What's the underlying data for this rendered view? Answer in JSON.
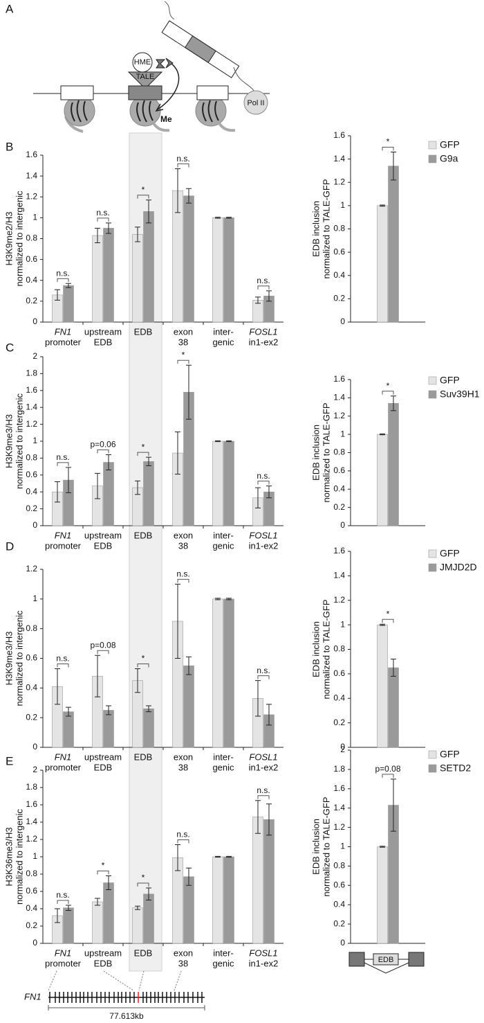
{
  "figure": {
    "panel_a": {
      "label": "A",
      "hme": "HME",
      "tale": "TALE",
      "me": "Me",
      "pol": "Pol II"
    },
    "gene_map": {
      "gene": "FN1",
      "length": "77.613kb"
    },
    "exon_diagram": {
      "label": "EDB"
    }
  },
  "chart_data": [
    {
      "type": "bar",
      "panel": "B",
      "ylabel": [
        "H3K9me2/H3",
        "normalized to intergenic"
      ],
      "categories": [
        [
          "FN1",
          "promoter"
        ],
        [
          "upstream",
          "EDB"
        ],
        [
          "EDB"
        ],
        [
          "exon",
          "38"
        ],
        [
          "inter-",
          "genic"
        ],
        [
          "FOSL1",
          "in1-ex2"
        ]
      ],
      "ylim": [
        0,
        1.6
      ],
      "yticks": [
        0,
        0.2,
        0.4,
        0.6,
        0.8,
        1,
        1.2,
        1.4,
        1.6
      ],
      "series": [
        {
          "color": "#e4e4e4",
          "values": [
            0.26,
            0.83,
            0.84,
            1.26,
            1.0,
            0.21
          ],
          "errors": [
            0.05,
            0.07,
            0.07,
            0.21,
            0.005,
            0.03
          ]
        },
        {
          "color": "#9a9a9a",
          "values": [
            0.35,
            0.9,
            1.06,
            1.21,
            1.0,
            0.25
          ],
          "errors": [
            0.02,
            0.05,
            0.11,
            0.07,
            0.005,
            0.05
          ]
        }
      ],
      "annotations": [
        "n.s.",
        "n.s.",
        "*",
        "n.s.",
        null,
        "n.s."
      ]
    },
    {
      "type": "bar",
      "ylabel": [
        "EDB inclusion",
        "normalized to TALE-GFP"
      ],
      "ylim": [
        0,
        1.6
      ],
      "yticks": [
        0,
        0.2,
        0.4,
        0.6,
        0.8,
        1,
        1.2,
        1.4,
        1.6
      ],
      "series": [
        {
          "name": "GFP",
          "color": "#e4e4e4",
          "values": [
            1.0
          ],
          "errors": [
            0.005
          ]
        },
        {
          "name": "G9a",
          "color": "#9a9a9a",
          "values": [
            1.34
          ],
          "errors": [
            0.12
          ]
        }
      ],
      "annotations": [
        "*"
      ]
    },
    {
      "type": "bar",
      "panel": "C",
      "ylabel": [
        "H3K9me3/H3",
        "normalized to intergenic"
      ],
      "categories": [
        [
          "FN1",
          "promoter"
        ],
        [
          "upstream",
          "EDB"
        ],
        [
          "EDB"
        ],
        [
          "exon",
          "38"
        ],
        [
          "inter-",
          "genic"
        ],
        [
          "FOSL1",
          "in1-ex2"
        ]
      ],
      "ylim": [
        0,
        2
      ],
      "yticks": [
        0,
        0.2,
        0.4,
        0.6,
        0.8,
        1,
        1.2,
        1.4,
        1.6,
        1.8,
        2
      ],
      "series": [
        {
          "color": "#e4e4e4",
          "values": [
            0.4,
            0.47,
            0.45,
            0.86,
            1.0,
            0.33
          ],
          "errors": [
            0.12,
            0.15,
            0.08,
            0.25,
            0.005,
            0.12
          ]
        },
        {
          "color": "#9a9a9a",
          "values": [
            0.54,
            0.75,
            0.76,
            1.58,
            1.0,
            0.4
          ],
          "errors": [
            0.15,
            0.09,
            0.05,
            0.32,
            0.005,
            0.07
          ]
        }
      ],
      "annotations": [
        "n.s.",
        "p=0.06",
        "*",
        "*",
        null,
        "n.s."
      ]
    },
    {
      "type": "bar",
      "ylabel": [
        "EDB inclusion",
        "normalized to TALE-GFP"
      ],
      "ylim": [
        0,
        1.6
      ],
      "yticks": [
        0,
        0.2,
        0.4,
        0.6,
        0.8,
        1,
        1.2,
        1.4,
        1.6
      ],
      "series": [
        {
          "name": "GFP",
          "color": "#e4e4e4",
          "values": [
            1.0
          ],
          "errors": [
            0.005
          ]
        },
        {
          "name": "Suv39H1",
          "color": "#9a9a9a",
          "values": [
            1.34
          ],
          "errors": [
            0.08
          ]
        }
      ],
      "annotations": [
        "*"
      ]
    },
    {
      "type": "bar",
      "panel": "D",
      "ylabel": [
        "H3K9me3/H3",
        "normalized to intergenic"
      ],
      "categories": [
        [
          "FN1",
          "promoter"
        ],
        [
          "upstream",
          "EDB"
        ],
        [
          "EDB"
        ],
        [
          "exon",
          "38"
        ],
        [
          "inter-",
          "genic"
        ],
        [
          "FOSL1",
          "in1-ex2"
        ]
      ],
      "ylim": [
        0,
        1.2
      ],
      "yticks": [
        0,
        0.2,
        0.4,
        0.6,
        0.8,
        1,
        1.2
      ],
      "series": [
        {
          "color": "#e4e4e4",
          "values": [
            0.41,
            0.48,
            0.45,
            0.85,
            1.0,
            0.33
          ],
          "errors": [
            0.12,
            0.14,
            0.08,
            0.25,
            0.005,
            0.12
          ]
        },
        {
          "color": "#9a9a9a",
          "values": [
            0.24,
            0.25,
            0.26,
            0.55,
            1.0,
            0.22
          ],
          "errors": [
            0.03,
            0.03,
            0.02,
            0.06,
            0.005,
            0.07
          ]
        }
      ],
      "annotations": [
        "n.s.",
        "p=0.08",
        "*",
        "n.s.",
        null,
        "n.s."
      ]
    },
    {
      "type": "bar",
      "ylabel": [
        "EDB inclusion",
        "normalized to TALE-GFP"
      ],
      "ylim": [
        0,
        1.6
      ],
      "yticks": [
        0,
        0.2,
        0.4,
        0.6,
        0.8,
        1,
        1.2,
        1.4,
        1.6
      ],
      "series": [
        {
          "name": "GFP",
          "color": "#e4e4e4",
          "values": [
            1.0
          ],
          "errors": [
            0.005
          ]
        },
        {
          "name": "JMJD2D",
          "color": "#9a9a9a",
          "values": [
            0.65
          ],
          "errors": [
            0.07
          ]
        }
      ],
      "annotations": [
        "*"
      ]
    },
    {
      "type": "bar",
      "panel": "E",
      "ylabel": [
        "H3K36me3/H3",
        "normalized to intergenic"
      ],
      "categories": [
        [
          "FN1",
          "promoter"
        ],
        [
          "upstream",
          "EDB"
        ],
        [
          "EDB"
        ],
        [
          "exon",
          "38"
        ],
        [
          "inter-",
          "genic"
        ],
        [
          "FOSL1",
          "in1-ex2"
        ]
      ],
      "ylim": [
        0,
        2
      ],
      "yticks": [
        0,
        0.2,
        0.4,
        0.6,
        0.8,
        1,
        1.2,
        1.4,
        1.6,
        1.8,
        2
      ],
      "series": [
        {
          "color": "#e4e4e4",
          "values": [
            0.32,
            0.48,
            0.41,
            0.99,
            1.0,
            1.46
          ],
          "errors": [
            0.08,
            0.04,
            0.02,
            0.15,
            0.005,
            0.19
          ]
        },
        {
          "color": "#9a9a9a",
          "values": [
            0.41,
            0.7,
            0.57,
            0.77,
            1.0,
            1.43
          ],
          "errors": [
            0.03,
            0.08,
            0.07,
            0.1,
            0.005,
            0.18
          ]
        }
      ],
      "annotations": [
        "n.s.",
        "*",
        "*",
        "n.s.",
        null,
        "n.s."
      ]
    },
    {
      "type": "bar",
      "ylabel": [
        "EDB inclusion",
        "normalized to TALE-GFP"
      ],
      "ylim": [
        0,
        2
      ],
      "yticks": [
        0,
        0.2,
        0.4,
        0.6,
        0.8,
        1,
        1.2,
        1.4,
        1.6,
        1.8,
        2
      ],
      "series": [
        {
          "name": "GFP",
          "color": "#e4e4e4",
          "values": [
            1.0
          ],
          "errors": [
            0.005
          ]
        },
        {
          "name": "SETD2",
          "color": "#9a9a9a",
          "values": [
            1.43
          ],
          "errors": [
            0.27
          ]
        }
      ],
      "annotations": [
        "p=0.08"
      ]
    }
  ]
}
